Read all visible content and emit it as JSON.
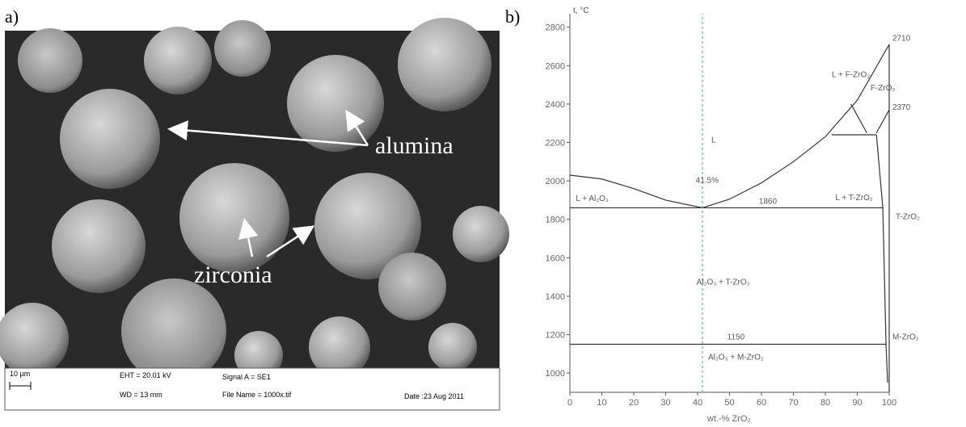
{
  "panel_a": {
    "label": "a)",
    "annotations": [
      "alumina",
      "zirconia"
    ],
    "scale_bar": "10 µm",
    "info": {
      "eht": "EHT = 20.01 kV",
      "wd": "WD =  13 mm",
      "signal": "Signal A = SE1",
      "file": "File Name = 1000x.tif",
      "date": "Date :23 Aug 2011"
    }
  },
  "panel_b": {
    "label": "b)"
  },
  "chart_data": {
    "type": "line",
    "ylabel": "t, °C",
    "xlabel": "wt.-% ZrO₂",
    "xlim": [
      0,
      100
    ],
    "ylim": [
      900,
      2870
    ],
    "xticks": [
      0,
      10,
      20,
      30,
      40,
      50,
      60,
      70,
      80,
      90,
      100
    ],
    "yticks": [
      1000,
      1200,
      1400,
      1600,
      1800,
      2000,
      2200,
      2400,
      2600,
      2800
    ],
    "series": [
      {
        "color": "#333333",
        "x": [
          0,
          10,
          20,
          30,
          41.5
        ],
        "values": [
          2030,
          2010,
          1960,
          1900,
          1860
        ]
      },
      {
        "color": "#333333",
        "x": [
          41.5,
          50,
          60,
          70,
          80,
          90,
          100
        ],
        "values": [
          1860,
          1905,
          1990,
          2100,
          2230,
          2420,
          2710
        ]
      },
      {
        "color": "#333333",
        "x": [
          0,
          98
        ],
        "values": [
          1860,
          1860
        ]
      },
      {
        "color": "#333333",
        "x": [
          82,
          96
        ],
        "values": [
          2240,
          2240
        ]
      },
      {
        "color": "#333333",
        "x": [
          0,
          99
        ],
        "values": [
          1150,
          1150
        ]
      },
      {
        "color": "#333333",
        "x": [
          88,
          93
        ],
        "values": [
          2400,
          2250
        ]
      },
      {
        "color": "#333333",
        "x": [
          96,
          100
        ],
        "values": [
          2250,
          2370
        ]
      },
      {
        "color": "#333333",
        "x": [
          96,
          98,
          99,
          99.5
        ],
        "values": [
          2240,
          1860,
          1150,
          950
        ]
      },
      {
        "color": "#333333",
        "x": [
          100,
          100
        ],
        "values": [
          900,
          2710
        ]
      },
      {
        "color": "#6a9fc0",
        "dashed": true,
        "x": [
          41.5,
          41.5
        ],
        "values": [
          900,
          2870
        ]
      }
    ],
    "annotations": [
      "L",
      "L + Al₂O₃",
      "41.5%",
      "1860",
      "L + F-ZrO₂",
      "F-ZrO₂",
      "2710",
      "2370",
      "L + T-ZrO₂",
      "T-ZrO₂",
      "Al₂O₃ + T-ZrO₂",
      "1150",
      "M-ZrO₂",
      "Al₂O₃ + M-ZrO₂"
    ]
  }
}
